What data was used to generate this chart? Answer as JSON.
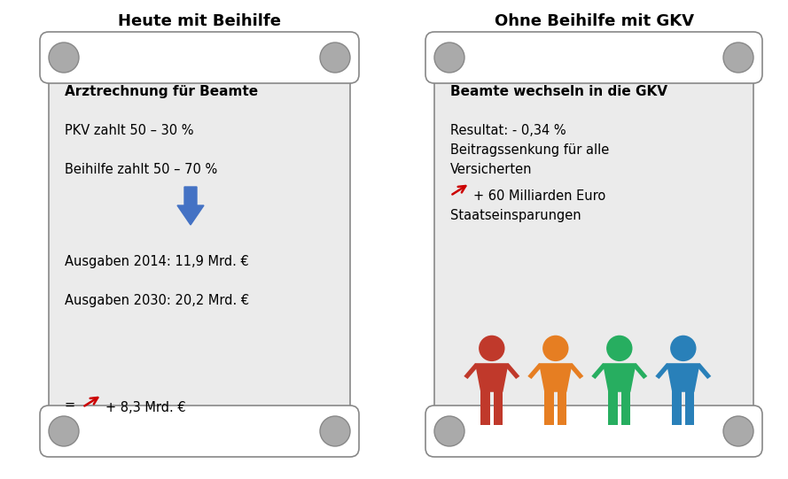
{
  "title_left": "Heute mit Beihilfe",
  "title_right": "Ohne Beihilfe mit GKV",
  "left_text_lines": [
    [
      "Arztrechnung für Beamte",
      true
    ],
    [
      "",
      false
    ],
    [
      "PKV zahlt 50 – 30 %",
      false
    ],
    [
      "",
      false
    ],
    [
      "Beihilfe zahlt 50 – 70 %",
      false
    ]
  ],
  "left_text_lines2": [
    [
      "Ausgaben 2014: 11,9 Mrd. €",
      false
    ],
    [
      "",
      false
    ],
    [
      "Ausgaben 2030: 20,2 Mrd. €",
      false
    ]
  ],
  "right_text_lines": [
    [
      "Beamte wechseln in die GKV",
      true
    ],
    [
      "",
      false
    ],
    [
      "Resultat: - 0,34 %",
      false
    ],
    [
      "Beitragssenkung für alle",
      false
    ],
    [
      "Versicherten",
      false
    ]
  ],
  "right_arrow_line1": "+ 60 Milliarden Euro",
  "right_arrow_line2": "Staatseinsparungen",
  "left_bottom_eq": "=",
  "left_bottom_rest": "+ 8,3 Mrd. €",
  "scroll_body_color": "#ebebeb",
  "scroll_roller_color": "#ffffff",
  "scroll_border_color": "#888888",
  "scroll_circle_color": "#aaaaaa",
  "title_fontsize": 13,
  "body_fontsize": 10.5,
  "bold_fontsize": 11,
  "person_colors": [
    "#c0392b",
    "#e67e22",
    "#27ae60",
    "#2980b9"
  ],
  "blue_arrow_color": "#4472c4",
  "red_arrow_color": "#cc0000",
  "white": "#ffffff",
  "black": "#000000"
}
